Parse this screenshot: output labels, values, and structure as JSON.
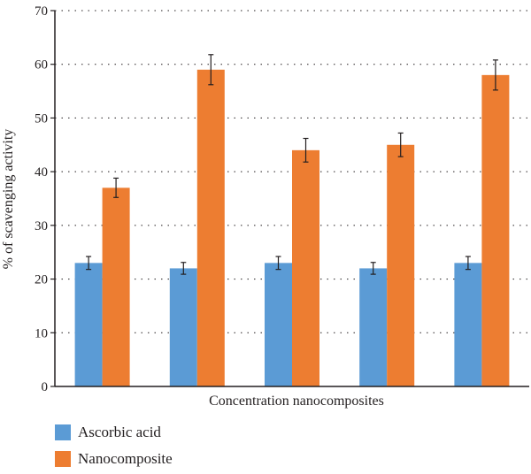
{
  "chart_data": {
    "type": "bar",
    "title": "",
    "xlabel": "Concentration nanocomposites",
    "ylabel": "% of scavenging activity",
    "ylim": [
      0,
      70
    ],
    "yticks": [
      "0",
      "10",
      "20",
      "30",
      "40",
      "50",
      "60",
      "70"
    ],
    "grid": true,
    "legend_position": "bottom-left",
    "categories": [
      "",
      "",
      "",
      "",
      ""
    ],
    "series": [
      {
        "name": "Ascorbic acid",
        "color": "#5b9bd5",
        "values": [
          23,
          22,
          23,
          22,
          23
        ],
        "errors": [
          1.2,
          1.1,
          1.2,
          1.1,
          1.2
        ]
      },
      {
        "name": "Nanocomposite",
        "color": "#ed7d31",
        "values": [
          37,
          59,
          44,
          45,
          58
        ],
        "errors": [
          1.8,
          2.8,
          2.2,
          2.2,
          2.8
        ]
      }
    ]
  }
}
